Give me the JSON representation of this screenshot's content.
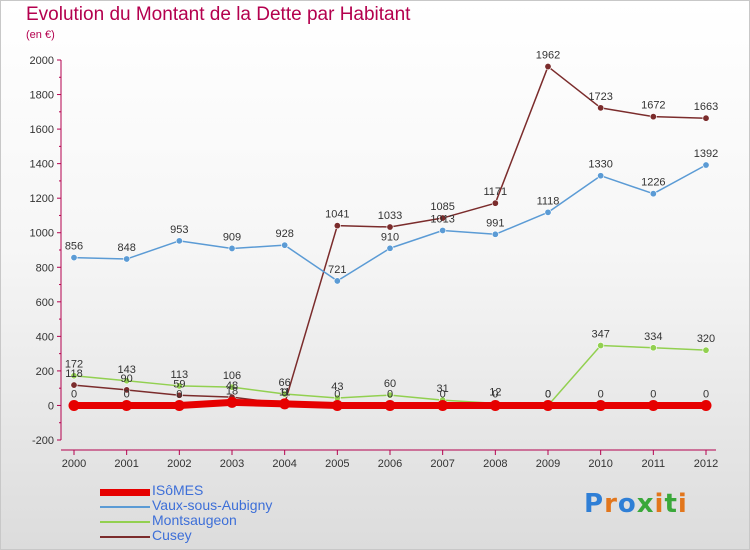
{
  "title": "Evolution du Montant de la Dette par Habitant",
  "unit_label": "(en €)",
  "logo": {
    "text": "Proxiti",
    "letter_colors": [
      "#2f7fd6",
      "#e2761c",
      "#2f7fd6",
      "#3aa83a",
      "#e2761c",
      "#3aa83a",
      "#e2761c"
    ]
  },
  "chart_data": {
    "type": "line",
    "title": "Evolution du Montant de la Dette par Habitant",
    "ylabel": "(en €)",
    "xlabel": "",
    "x": [
      2000,
      2001,
      2002,
      2003,
      2004,
      2005,
      2006,
      2007,
      2008,
      2009,
      2010,
      2011,
      2012
    ],
    "ylim": [
      -200,
      2000
    ],
    "yticks": [
      -200,
      0,
      200,
      400,
      600,
      800,
      1000,
      1200,
      1400,
      1600,
      1800,
      2000
    ],
    "grid": false,
    "legend": "bottom-left",
    "series": [
      {
        "name": "ISôMES",
        "color": "#e60000",
        "values": [
          0,
          0,
          0,
          18,
          9,
          0,
          0,
          0,
          0,
          0,
          0,
          0,
          0
        ],
        "labels": [
          "0",
          "0",
          "0",
          "18",
          "9",
          "0",
          "0",
          "0",
          "0",
          "0",
          "0",
          "0",
          "0"
        ]
      },
      {
        "name": "Vaux-sous-Aubigny",
        "color": "#5b9bd5",
        "values": [
          856,
          848,
          953,
          909,
          928,
          721,
          910,
          1013,
          991,
          1118,
          1330,
          1226,
          1392
        ],
        "labels": [
          "856",
          "848",
          "953",
          "909",
          "928",
          "721",
          "910",
          "1013",
          "991",
          "1118",
          "1330",
          "1226",
          "1392"
        ]
      },
      {
        "name": "Montsaugeon",
        "color": "#92d050",
        "values": [
          172,
          143,
          113,
          106,
          66,
          43,
          60,
          31,
          12,
          0,
          347,
          334,
          320
        ],
        "labels": [
          "172",
          "143",
          "113",
          "106",
          "66",
          "43",
          "60",
          "31",
          "12",
          "0",
          "347",
          "334",
          "320"
        ]
      },
      {
        "name": "Cusey",
        "color": "#7b2c2c",
        "values": [
          118,
          90,
          59,
          48,
          11,
          1041,
          1033,
          1085,
          1171,
          1962,
          1723,
          1672,
          1663
        ],
        "labels": [
          "118",
          "90",
          "59",
          "48",
          "11",
          "1041",
          "1033",
          "1085",
          "1171",
          "1962",
          "1723",
          "1672",
          "1663"
        ]
      }
    ]
  }
}
